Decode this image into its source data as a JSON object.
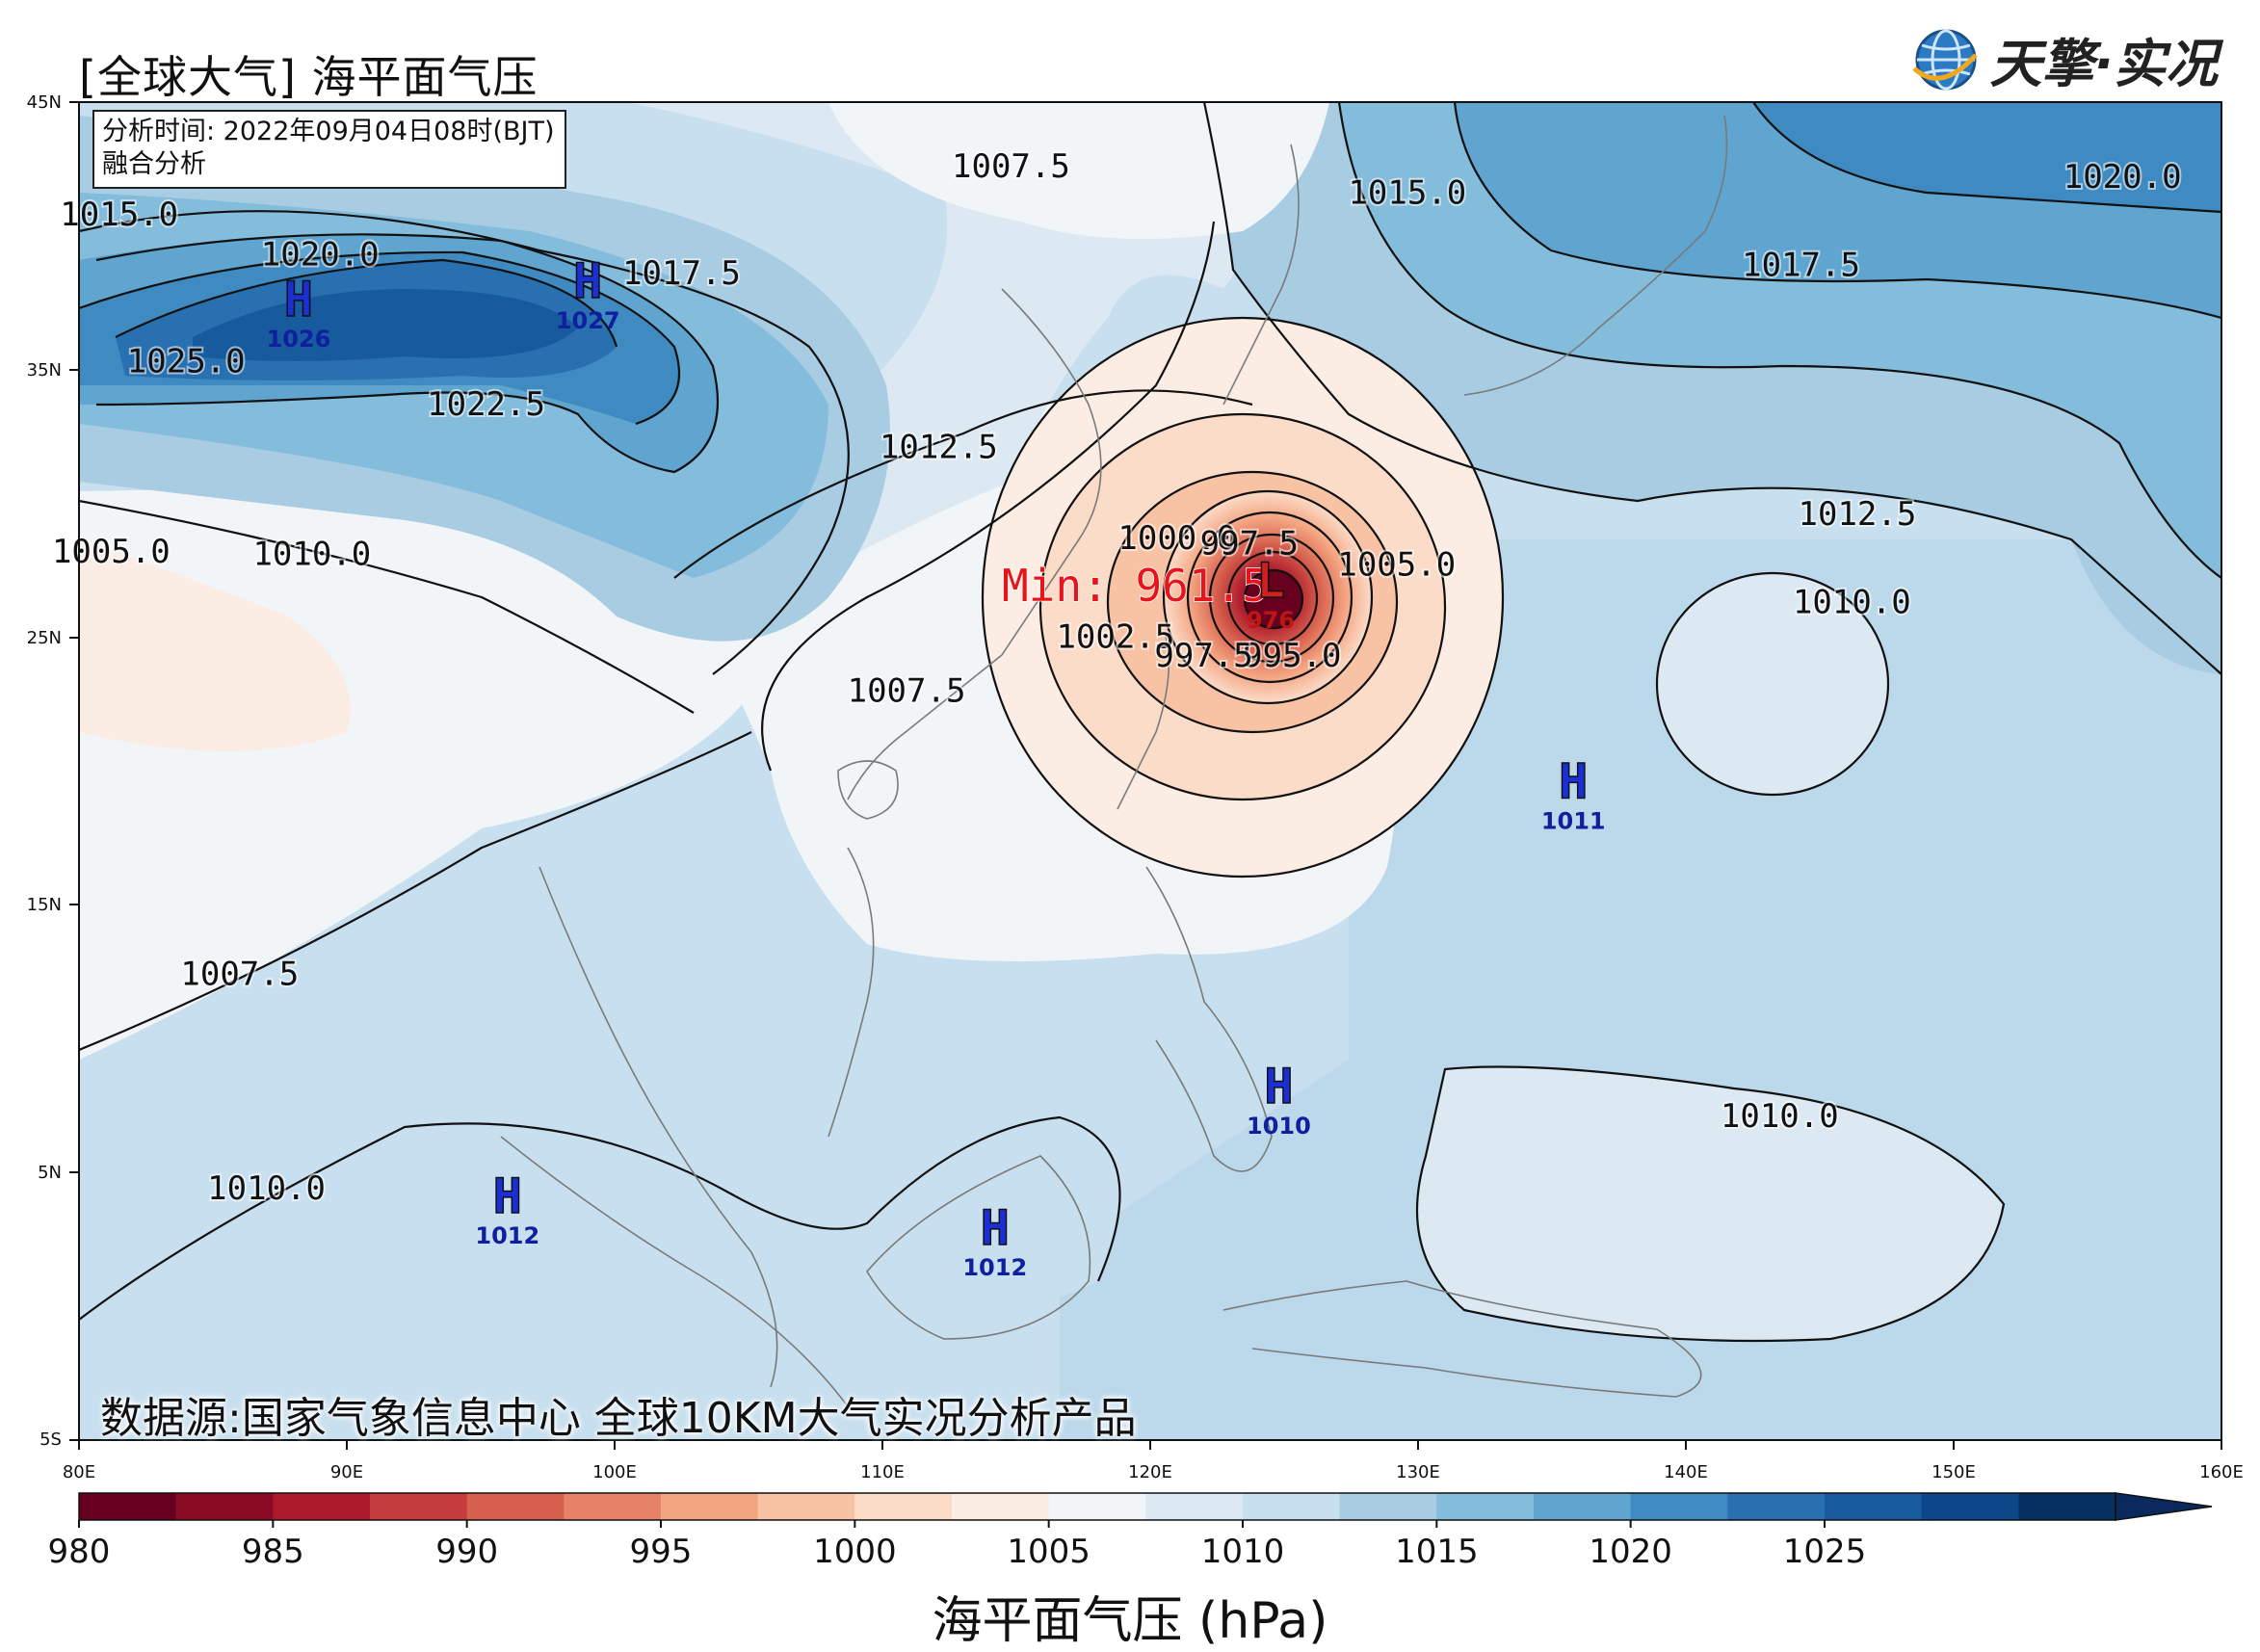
{
  "header": {
    "title": "[全球大气] 海平面气压",
    "brand": "天擎·实况"
  },
  "info_box": {
    "line1": "分析时间: 2022年09月04日08时(BJT)",
    "line2": "融合分析"
  },
  "source_text": "数据源:国家气象信息中心 全球10KM大气实况分析产品",
  "axes": {
    "lat_ticks": [
      "45N",
      "35N",
      "25N",
      "15N",
      "5N",
      "5S"
    ],
    "lon_ticks": [
      "80E",
      "90E",
      "100E",
      "110E",
      "120E",
      "130E",
      "140E",
      "150E",
      "160E"
    ],
    "lon_range": [
      80,
      160
    ],
    "lat_range": [
      -5,
      45
    ]
  },
  "colorbar": {
    "label": "海平面气压 (hPa)",
    "tick_labels": [
      "980",
      "985",
      "990",
      "995",
      "1000",
      "1005",
      "1010",
      "1015",
      "1020",
      "1025"
    ],
    "colors": [
      "#67001f",
      "#8a0b24",
      "#ad1a2c",
      "#c43c3c",
      "#d6604d",
      "#e58267",
      "#f4a582",
      "#f8c3a5",
      "#fbdcc9",
      "#fbece4",
      "#f2f5f8",
      "#dde9f2",
      "#c7dfee",
      "#a8cde3",
      "#84bcdb",
      "#5fa5cf",
      "#3f8ac0",
      "#2970b1",
      "#175b9e",
      "#0c4789",
      "#053061"
    ],
    "extend_color": "#0a2a5e"
  },
  "min_label": "Min: 961.5",
  "systems": [
    {
      "type": "H",
      "value": "1026",
      "lon": 88.2,
      "lat": 37.0
    },
    {
      "type": "H",
      "value": "1027",
      "lon": 99.0,
      "lat": 37.7
    },
    {
      "type": "H",
      "value": "1011",
      "lon": 135.8,
      "lat": 19.0
    },
    {
      "type": "H",
      "value": "1010",
      "lon": 124.8,
      "lat": 7.6
    },
    {
      "type": "H",
      "value": "1012",
      "lon": 96.0,
      "lat": 3.5
    },
    {
      "type": "H",
      "value": "1012",
      "lon": 114.2,
      "lat": 2.3
    },
    {
      "type": "L",
      "value": "976",
      "lon": 124.5,
      "lat": 26.5
    }
  ],
  "contour_labels": [
    {
      "text": "1007.5",
      "lon": 114.8,
      "lat": 42.2
    },
    {
      "text": "1015.0",
      "lon": 81.5,
      "lat": 40.4
    },
    {
      "text": "1020.0",
      "lon": 89.0,
      "lat": 38.9
    },
    {
      "text": "1017.5",
      "lon": 102.5,
      "lat": 38.2
    },
    {
      "text": "1025.0",
      "lon": 84.0,
      "lat": 34.9
    },
    {
      "text": "1022.5",
      "lon": 95.2,
      "lat": 33.3
    },
    {
      "text": "1012.5",
      "lon": 112.1,
      "lat": 31.7
    },
    {
      "text": "1005.0",
      "lon": 81.2,
      "lat": 27.8
    },
    {
      "text": "1010.0",
      "lon": 88.7,
      "lat": 27.7
    },
    {
      "text": "1015.0",
      "lon": 129.6,
      "lat": 41.2
    },
    {
      "text": "1020.0",
      "lon": 156.3,
      "lat": 41.8
    },
    {
      "text": "1017.5",
      "lon": 144.3,
      "lat": 38.5
    },
    {
      "text": "1012.5",
      "lon": 146.4,
      "lat": 29.2
    },
    {
      "text": "1010.0",
      "lon": 146.2,
      "lat": 25.9
    },
    {
      "text": "1005.0",
      "lon": 129.2,
      "lat": 27.3
    },
    {
      "text": "1007.5",
      "lon": 110.9,
      "lat": 22.6
    },
    {
      "text": "1002.5",
      "lon": 118.7,
      "lat": 24.6
    },
    {
      "text": "1000.0",
      "lon": 121.0,
      "lat": 28.3
    },
    {
      "text": "997.5",
      "lon": 123.7,
      "lat": 28.1
    },
    {
      "text": "995.0",
      "lon": 125.3,
      "lat": 23.9
    },
    {
      "text": "997.5",
      "lon": 122.0,
      "lat": 23.9
    },
    {
      "text": "1007.5",
      "lon": 86.0,
      "lat": 12.0
    },
    {
      "text": "1010.0",
      "lon": 143.5,
      "lat": 6.7
    },
    {
      "text": "1010.0",
      "lon": 87.0,
      "lat": 4.0
    }
  ]
}
